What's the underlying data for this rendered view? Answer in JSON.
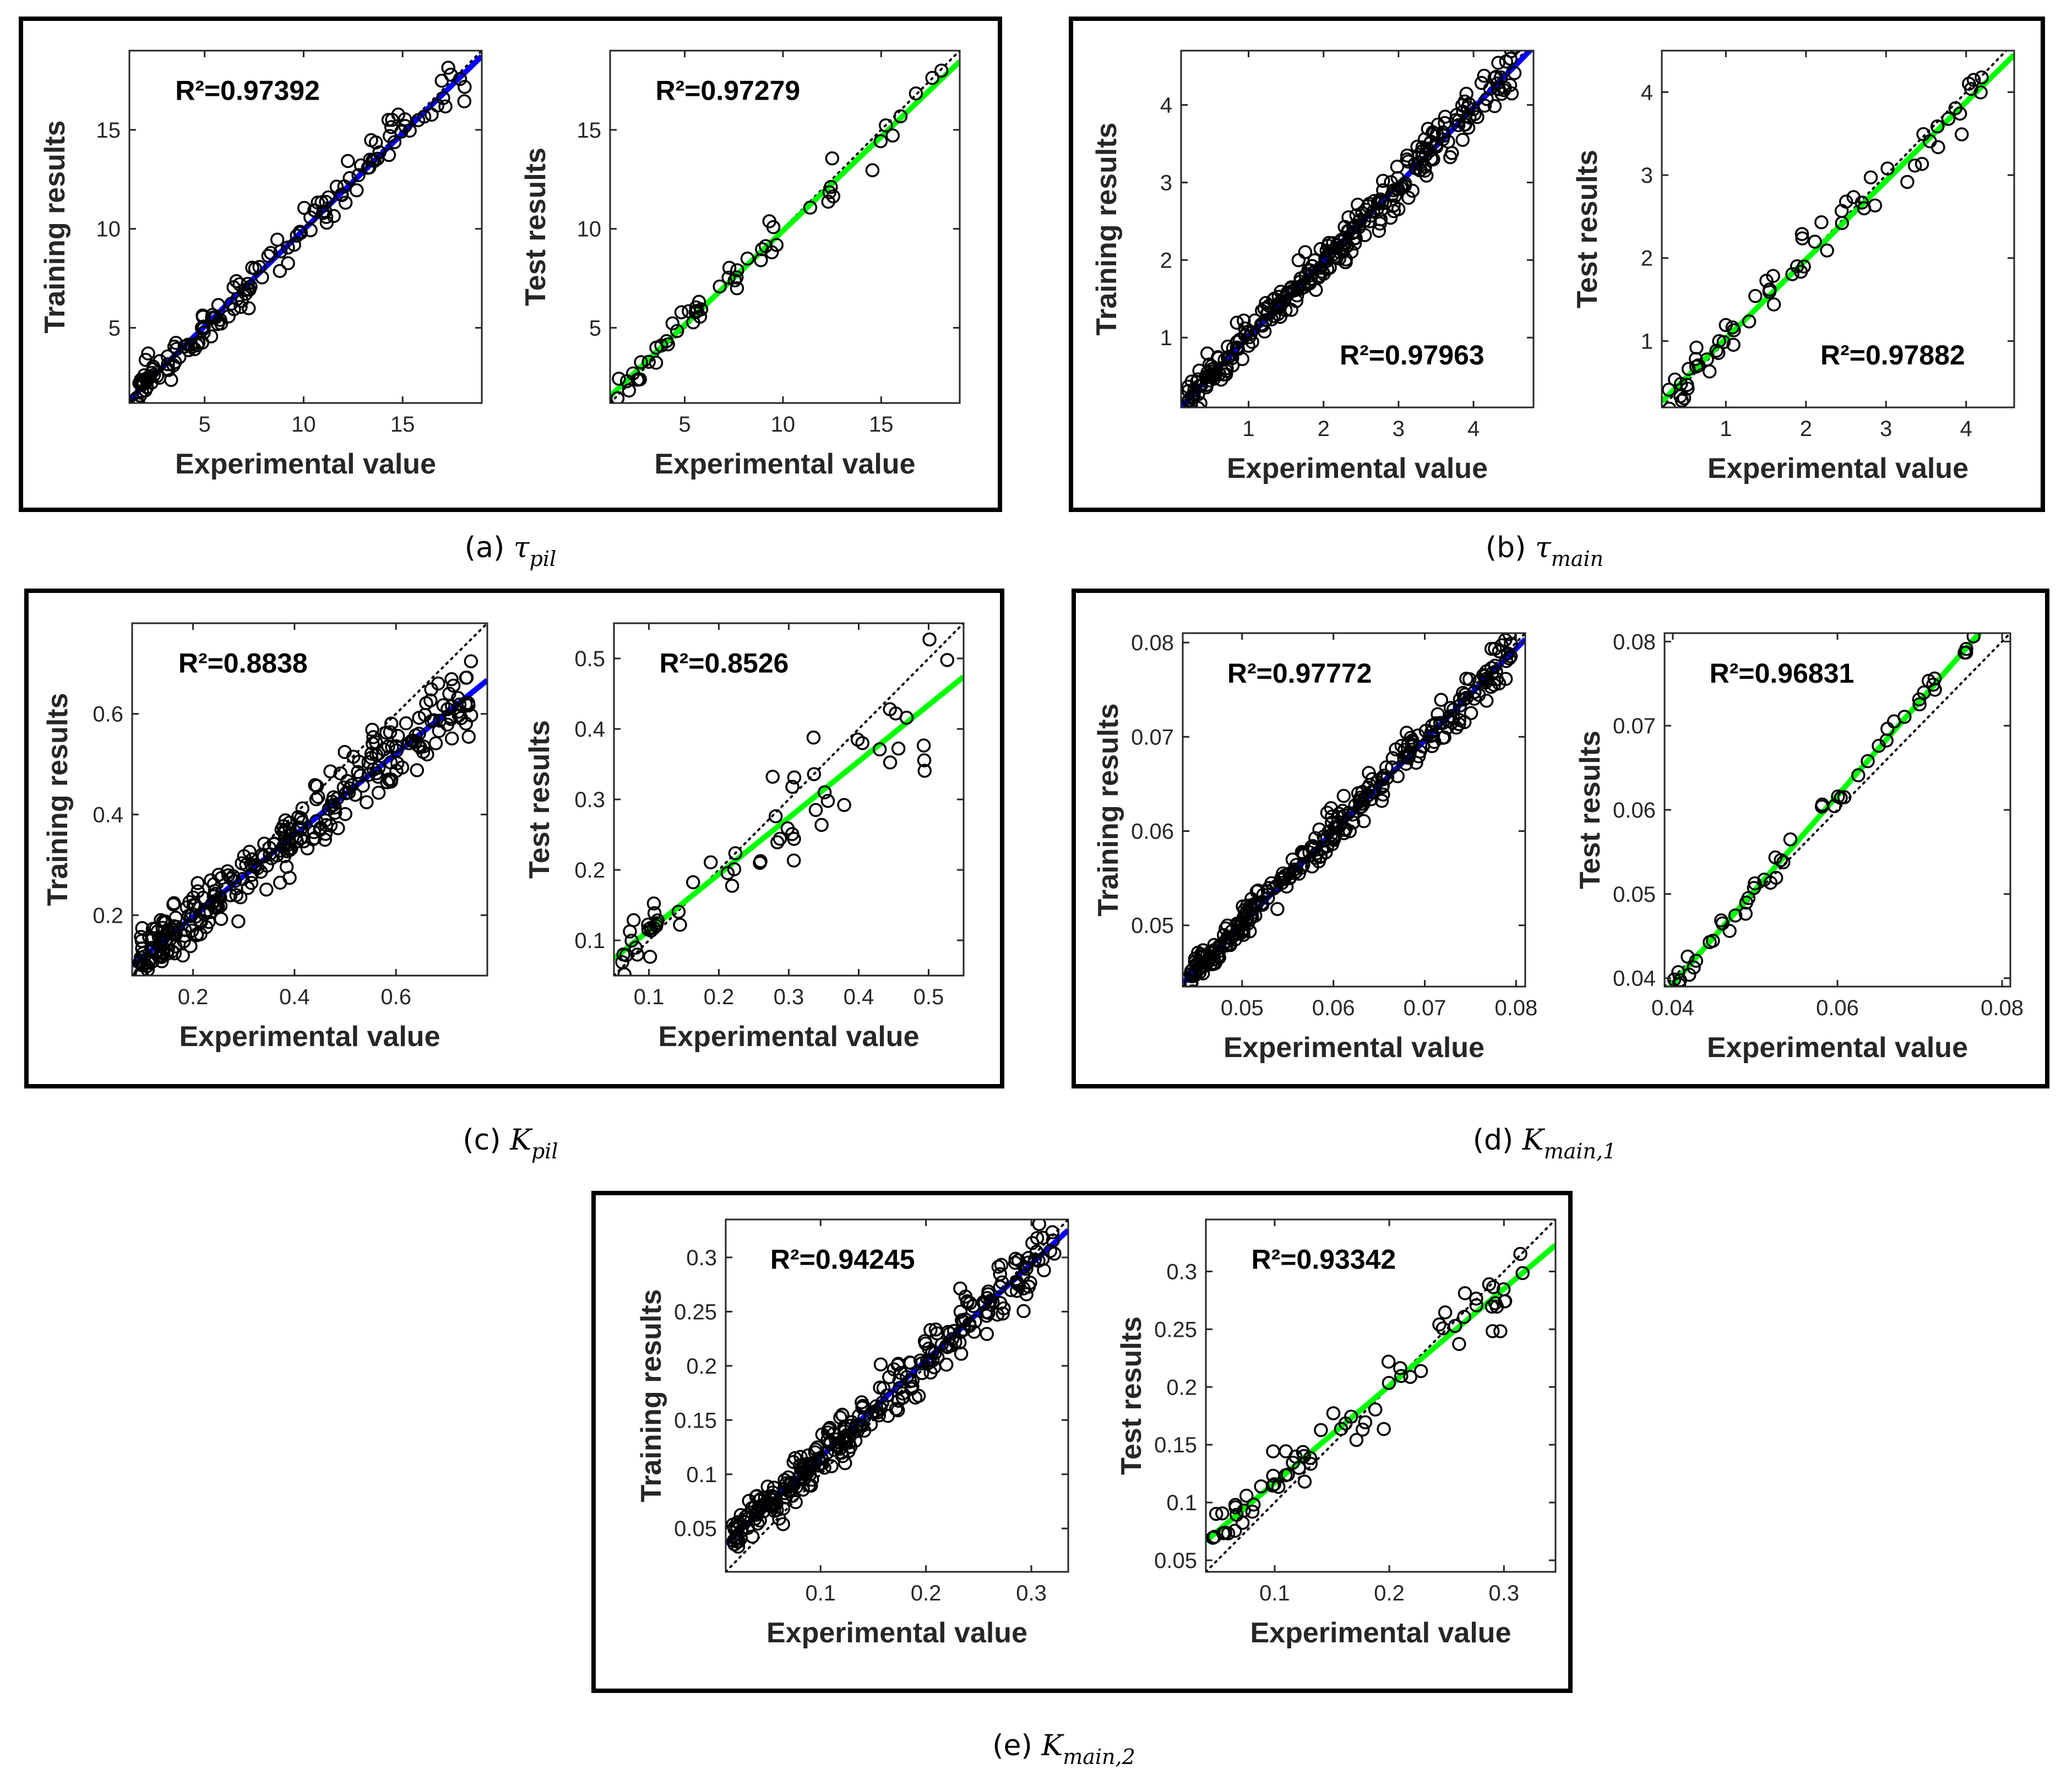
{
  "figure": {
    "captions": [
      {
        "prefix": "(a)",
        "symbol": "τ",
        "subscript": "pil"
      },
      {
        "prefix": "(b)",
        "symbol": "τ",
        "subscript": "main"
      },
      {
        "prefix": "(c)",
        "symbol": "K",
        "subscript": "pil"
      },
      {
        "prefix": "(d)",
        "symbol": "K",
        "subscript": "main,1"
      },
      {
        "prefix": "(e)",
        "symbol": "K",
        "subscript": "main,2"
      }
    ],
    "colors": {
      "training_fit": "#0000ff",
      "test_fit": "#00ff00",
      "marker": "#000000",
      "identity": "#000000"
    }
  },
  "chart_data": [
    {
      "panel": "a",
      "type": "scatter",
      "set": "training",
      "xlabel": "Experimental value",
      "ylabel": "Training results",
      "r2_label": "R²=0.97392",
      "xlim": [
        1.2,
        19
      ],
      "ylim": [
        1.2,
        19
      ],
      "xticks": [
        5,
        10,
        15
      ],
      "yticks": [
        5,
        10,
        15
      ],
      "fit": {
        "slope": 0.975,
        "intercept": 0.2
      },
      "n_points": 150,
      "noise": 0.55,
      "seed": 11
    },
    {
      "panel": "a",
      "type": "scatter",
      "set": "test",
      "xlabel": "Experimental value",
      "ylabel": "Test results",
      "r2_label": "R²=0.97279",
      "xlim": [
        1.2,
        19
      ],
      "ylim": [
        1.2,
        19
      ],
      "xticks": [
        5,
        10,
        15
      ],
      "yticks": [
        5,
        10,
        15
      ],
      "fit": {
        "slope": 0.95,
        "intercept": 0.4
      },
      "n_points": 55,
      "noise": 0.6,
      "seed": 12
    },
    {
      "panel": "b",
      "type": "scatter",
      "set": "training",
      "xlabel": "Experimental value",
      "ylabel": "Training results",
      "r2_label": "R²=0.97963",
      "xlim": [
        0.1,
        4.8
      ],
      "ylim": [
        0.1,
        4.7
      ],
      "xticks": [
        1,
        2,
        3,
        4
      ],
      "yticks": [
        1,
        2,
        3,
        4
      ],
      "fit": {
        "slope": 0.985,
        "intercept": 0.02
      },
      "n_points": 300,
      "noise": 0.15,
      "seed": 21
    },
    {
      "panel": "b",
      "type": "scatter",
      "set": "test",
      "xlabel": "Experimental value",
      "ylabel": "Test results",
      "r2_label": "R²=0.97882",
      "xlim": [
        0.2,
        4.6
      ],
      "ylim": [
        0.2,
        4.5
      ],
      "xticks": [
        1,
        2,
        3,
        4
      ],
      "yticks": [
        1,
        2,
        3,
        4
      ],
      "fit": {
        "slope": 0.95,
        "intercept": 0.08
      },
      "n_points": 65,
      "noise": 0.17,
      "seed": 22
    },
    {
      "panel": "c",
      "type": "scatter",
      "set": "training",
      "xlabel": "Experimental value",
      "ylabel": "Training results",
      "r2_label": "R²=0.8838",
      "xlim": [
        0.08,
        0.78
      ],
      "ylim": [
        0.08,
        0.78
      ],
      "xticks": [
        0.2,
        0.4,
        0.6
      ],
      "yticks": [
        0.2,
        0.4,
        0.6
      ],
      "fit": {
        "slope": 0.81,
        "intercept": 0.035
      },
      "n_points": 300,
      "noise": 0.035,
      "seed": 31
    },
    {
      "panel": "c",
      "type": "scatter",
      "set": "test",
      "xlabel": "Experimental value",
      "ylabel": "Test results",
      "r2_label": "R²=0.8526",
      "xlim": [
        0.05,
        0.55
      ],
      "ylim": [
        0.05,
        0.55
      ],
      "xticks": [
        0.1,
        0.2,
        0.3,
        0.4,
        0.5
      ],
      "yticks": [
        0.1,
        0.2,
        0.3,
        0.4,
        0.5
      ],
      "fit": {
        "slope": 0.8,
        "intercept": 0.034
      },
      "n_points": 60,
      "noise": 0.04,
      "seed": 32
    },
    {
      "panel": "d",
      "type": "scatter",
      "set": "training",
      "xlabel": "Experimental value",
      "ylabel": "Training results",
      "r2_label": "R²=0.97772",
      "xlim": [
        0.0435,
        0.081
      ],
      "ylim": [
        0.0435,
        0.081
      ],
      "xticks": [
        0.05,
        0.06,
        0.07,
        0.08
      ],
      "yticks": [
        0.05,
        0.06,
        0.07,
        0.08
      ],
      "fit": {
        "slope": 0.972,
        "intercept": 0.0016
      },
      "n_points": 300,
      "noise": 0.0011,
      "seed": 41
    },
    {
      "panel": "d",
      "type": "scatter",
      "set": "test",
      "xlabel": "Experimental value",
      "ylabel": "Test results",
      "r2_label": "R²=0.96831",
      "xlim": [
        0.039,
        0.081
      ],
      "ylim": [
        0.039,
        0.081
      ],
      "xticks": [
        0.04,
        0.06,
        0.08
      ],
      "yticks": [
        0.04,
        0.05,
        0.06,
        0.07,
        0.08
      ],
      "fit": {
        "slope": 1.12,
        "intercept": -0.0055
      },
      "n_points": 55,
      "noise": 0.0009,
      "seed": 42
    },
    {
      "panel": "e",
      "type": "scatter",
      "set": "training",
      "xlabel": "Experimental value",
      "ylabel": "Training results",
      "r2_label": "R²=0.94245",
      "xlim": [
        0.01,
        0.335
      ],
      "ylim": [
        0.01,
        0.335
      ],
      "xticks": [
        0.1,
        0.2,
        0.3
      ],
      "yticks": [
        0.05,
        0.1,
        0.15,
        0.2,
        0.25,
        0.3
      ],
      "fit": {
        "slope": 0.89,
        "intercept": 0.027
      },
      "n_points": 300,
      "noise": 0.012,
      "seed": 51
    },
    {
      "panel": "e",
      "type": "scatter",
      "set": "test",
      "xlabel": "Experimental value",
      "ylabel": "Test results",
      "r2_label": "R²=0.93342",
      "xlim": [
        0.04,
        0.345
      ],
      "ylim": [
        0.04,
        0.345
      ],
      "xticks": [
        0.1,
        0.2,
        0.3
      ],
      "yticks": [
        0.05,
        0.1,
        0.15,
        0.2,
        0.25,
        0.3
      ],
      "fit": {
        "slope": 0.84,
        "intercept": 0.033
      },
      "n_points": 70,
      "noise": 0.013,
      "seed": 52
    }
  ]
}
